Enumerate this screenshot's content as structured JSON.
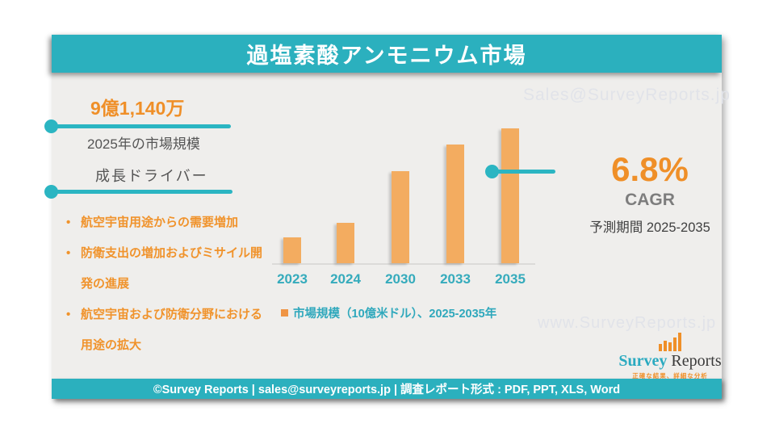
{
  "header": {
    "title": "過塩素酸アンモニウム市場"
  },
  "left_panel": {
    "market_value": "9億1,140万",
    "market_value_caption": "2025年の市場規模",
    "drivers_heading": "成長ドライバー",
    "drivers": [
      "航空宇宙用途からの需要増加",
      "防衛支出の増加およびミサイル開発の進展",
      "航空宇宙および防衛分野における用途の拡大"
    ]
  },
  "chart_data": {
    "type": "bar",
    "categories": [
      "2023",
      "2024",
      "2030",
      "2033",
      "2035"
    ],
    "values": [
      0.34,
      0.52,
      1.19,
      1.54,
      1.75
    ],
    "ylabel": "市場規模（10億米ドル）",
    "ylim": [
      0,
      1.75
    ],
    "grid": false,
    "legend": "市場規模（10億米ドル）、2025-2035年",
    "legend_position": "bottom",
    "bar_color": "#f3ac60"
  },
  "right_panel": {
    "cagr_value": "6.8%",
    "cagr_label": "CAGR",
    "forecast_period": "予測期間 2025-2035"
  },
  "watermarks": {
    "top_right": "Sales@SurveyReports.jp",
    "bottom_right": "www.SurveyReports.jp"
  },
  "logo": {
    "name_primary": "Survey",
    "name_secondary": " Reports",
    "tagline": "正確な結果、詳細な分析"
  },
  "footer": {
    "text": "©Survey Reports | sales@surveyreports.jp |  調査レポート形式 : PDF, PPT, XLS, Word"
  },
  "colors": {
    "teal": "#2bb0be",
    "orange_text": "#ef8f28",
    "bar_orange": "#f3ac60",
    "gray_text": "#555555",
    "watermark": "#e1e3e9",
    "card_background": "#efeeec"
  }
}
